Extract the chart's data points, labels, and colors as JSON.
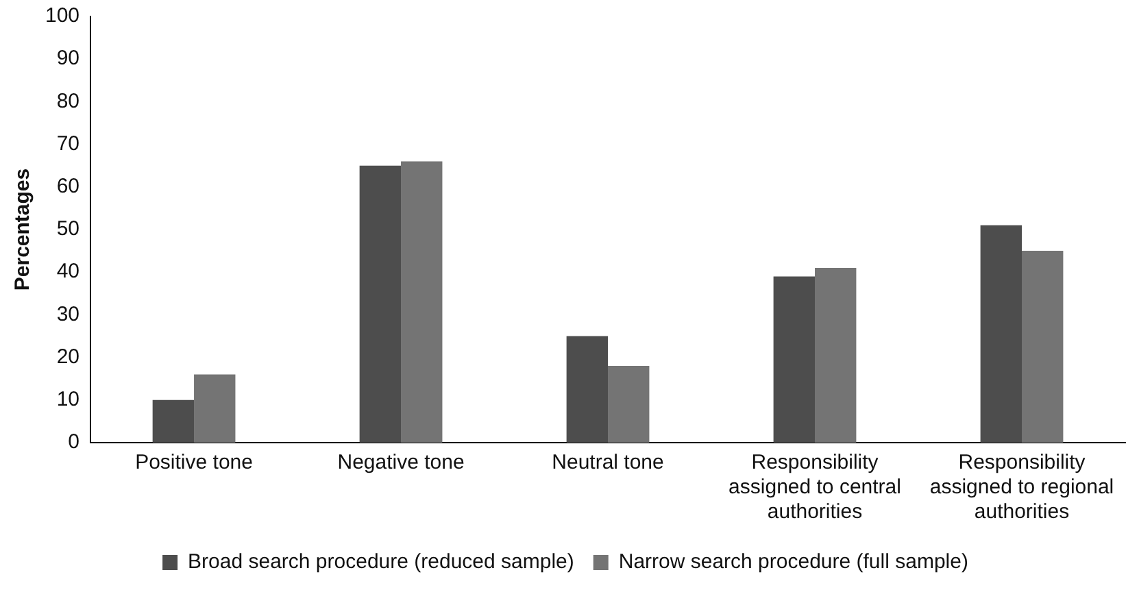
{
  "chart_data": {
    "type": "bar",
    "ylabel": "Percentages",
    "categories": [
      "Positive tone",
      "Negative tone",
      "Neutral tone",
      "Responsibility assigned to central authorities",
      "Responsibility assigned to regional authorities"
    ],
    "series": [
      {
        "name": "Broad search procedure (reduced sample)",
        "color": "#4d4d4d",
        "values": [
          10,
          65,
          25,
          39,
          51
        ]
      },
      {
        "name": "Narrow search procedure (full sample)",
        "color": "#747474",
        "values": [
          16,
          66,
          18,
          41,
          45
        ]
      }
    ],
    "ylim": [
      0,
      100
    ],
    "yticks": [
      0,
      10,
      20,
      30,
      40,
      50,
      60,
      70,
      80,
      90,
      100
    ],
    "grid": false,
    "legend": "bottom"
  }
}
